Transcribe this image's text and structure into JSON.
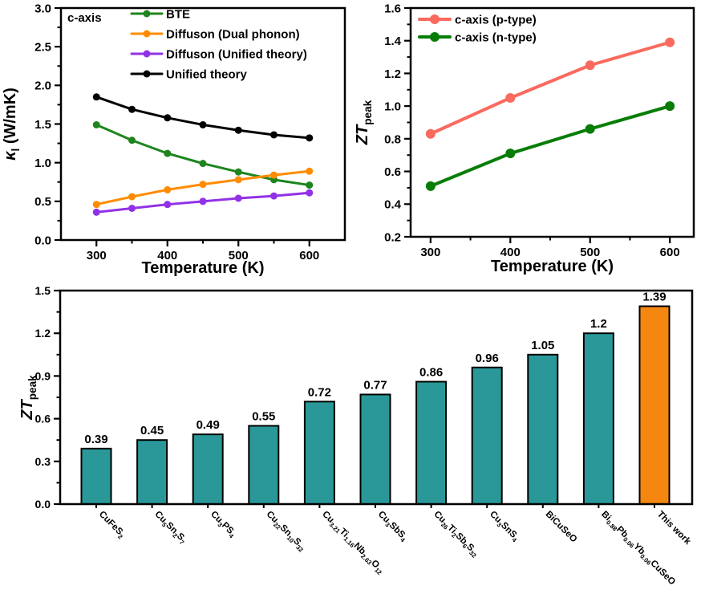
{
  "page": {
    "background": "#ffffff"
  },
  "colors": {
    "axis": "#000000",
    "annotation_blue": "#1414ff",
    "bar_teal": "#2a9898",
    "bar_highlight_orange": "#f5860f"
  },
  "chart_data": [
    {
      "id": "kappa",
      "type": "line",
      "annotation": {
        "text": "c-axis",
        "color": "#1414ff"
      },
      "xlabel": "Temperature (K)",
      "ylabel": "*κ*_{l} (W/mK)",
      "xlim": [
        250,
        650
      ],
      "ylim": [
        0,
        3
      ],
      "xticks": [
        300,
        400,
        500,
        600
      ],
      "yticks": [
        0,
        0.5,
        1,
        1.5,
        2,
        2.5,
        3
      ],
      "ytick_labels": [
        "0.0",
        "0.5",
        "1.0",
        "1.5",
        "2.0",
        "2.5",
        "3.0"
      ],
      "legend_position": "top-left-inside",
      "x": [
        300,
        350,
        400,
        450,
        500,
        550,
        600
      ],
      "series": [
        {
          "name": "BTE",
          "color": "#1e851e",
          "values": [
            1.49,
            1.29,
            1.12,
            0.99,
            0.88,
            0.78,
            0.71
          ]
        },
        {
          "name": "Diffuson (Dual phonon)",
          "color": "#ff8c00",
          "values": [
            0.46,
            0.56,
            0.65,
            0.72,
            0.78,
            0.84,
            0.89
          ]
        },
        {
          "name": "Diffuson (Unified theory)",
          "color": "#9232e6",
          "values": [
            0.36,
            0.41,
            0.46,
            0.5,
            0.54,
            0.57,
            0.61
          ]
        },
        {
          "name": "Unified theory",
          "color": "#000000",
          "values": [
            1.85,
            1.69,
            1.58,
            1.49,
            1.42,
            1.36,
            1.32
          ]
        }
      ]
    },
    {
      "id": "ztline",
      "type": "line",
      "xlabel": "Temperature (K)",
      "ylabel": "*ZT*_{peak}",
      "xlim": [
        275,
        630
      ],
      "ylim": [
        0.2,
        1.6
      ],
      "xticks": [
        300,
        400,
        500,
        600
      ],
      "yticks": [
        0.2,
        0.4,
        0.6,
        0.8,
        1.0,
        1.2,
        1.4,
        1.6
      ],
      "ytick_labels": [
        "0.2",
        "0.4",
        "0.6",
        "0.8",
        "1.0",
        "1.2",
        "1.4",
        "1.6"
      ],
      "legend_position": "top-left-inside",
      "x": [
        300,
        400,
        500,
        600
      ],
      "series": [
        {
          "name": "c-axis (p-type)",
          "color": "#fa6a5f",
          "values": [
            0.83,
            1.05,
            1.25,
            1.39
          ]
        },
        {
          "name": "c-axis (n-type)",
          "color": "#077d07",
          "values": [
            0.51,
            0.71,
            0.86,
            1.0
          ]
        }
      ]
    },
    {
      "id": "ztbar",
      "type": "bar",
      "ylabel": "*ZT*_{peak}",
      "ylim": [
        0,
        1.5
      ],
      "yticks": [
        0,
        0.3,
        0.6,
        0.9,
        1.2,
        1.5
      ],
      "ytick_labels": [
        "0.0",
        "0.3",
        "0.6",
        "0.9",
        "1.2",
        "1.5"
      ],
      "categories": [
        "CuFeS_{2}",
        "Cu_{5}Sn_{2}S_{7}",
        "Cu_{3}PS_{4}",
        "Cu_{22}Sn_{10}S_{32}",
        "Cu_{3.21}Ti_{1.16}Nb_{2.63}O_{12}",
        "Cu_{3}SbS_{4}",
        "Cu_{26}Ti_{2}Sb_{6}S_{32}",
        "Cu_{3}SnS_{4}",
        "BiCuSeO",
        "Bi_{0.88}Pb_{0.06}Yb_{0.06}CuSeO",
        "This work"
      ],
      "values": [
        0.39,
        0.45,
        0.49,
        0.55,
        0.72,
        0.77,
        0.86,
        0.96,
        1.05,
        1.2,
        1.39
      ],
      "value_labels": [
        "0.39",
        "0.45",
        "0.49",
        "0.55",
        "0.72",
        "0.77",
        "0.86",
        "0.96",
        "1.05",
        "1.2",
        "1.39"
      ],
      "bar_colors": [
        "#2a9898",
        "#2a9898",
        "#2a9898",
        "#2a9898",
        "#2a9898",
        "#2a9898",
        "#2a9898",
        "#2a9898",
        "#2a9898",
        "#2a9898",
        "#f5860f"
      ],
      "category_label_colors": [
        "#000000",
        "#000000",
        "#000000",
        "#000000",
        "#000000",
        "#000000",
        "#000000",
        "#000000",
        "#000000",
        "#000000",
        "#1414ff"
      ]
    }
  ]
}
